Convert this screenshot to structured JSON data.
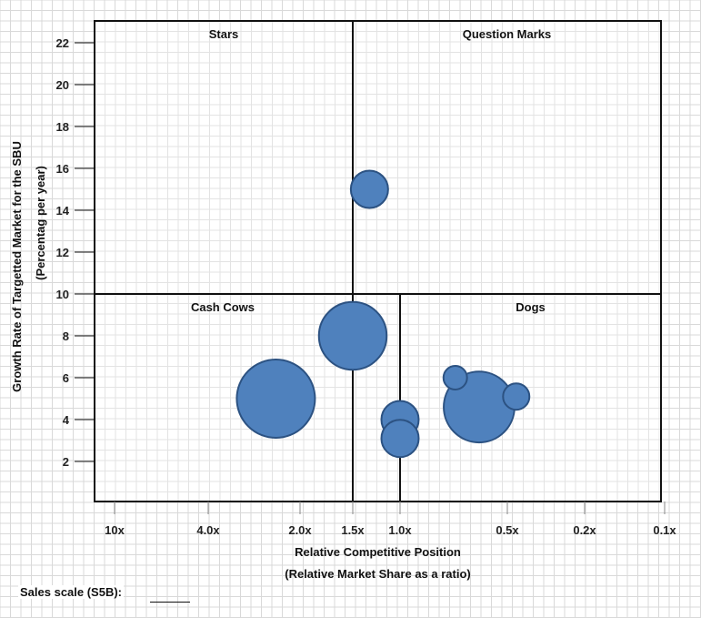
{
  "chart_data": {
    "type": "bubble",
    "title": "",
    "xlabel": "Relative Competitive Position",
    "xlabel2": "(Relative Market Share as a ratio)",
    "ylabel": "Growth Rate of Targetted Market for the SBU",
    "ylabel2": "(Percentag per year)",
    "x_scale": "log, reversed",
    "x_ticks": [
      {
        "value": 10,
        "label": "10x"
      },
      {
        "value": 4,
        "label": "4.0x"
      },
      {
        "value": 2,
        "label": "2.0x"
      },
      {
        "value": 1.5,
        "label": "1.5x"
      },
      {
        "value": 1,
        "label": "1.0x"
      },
      {
        "value": 0.5,
        "label": "0.5x"
      },
      {
        "value": 0.2,
        "label": "0.2x"
      },
      {
        "value": 0.1,
        "label": "0.1x"
      }
    ],
    "y_ticks": [
      2,
      4,
      6,
      8,
      10,
      12,
      14,
      16,
      18,
      20,
      22
    ],
    "ylim": [
      0,
      23
    ],
    "grid": true,
    "divider_y": 10,
    "divider_x_top": 1.5,
    "divider_x_bottom": 1.0,
    "quadrants": {
      "top_left": "Stars",
      "top_right": "Question Marks",
      "bottom_left": "Cash Cows",
      "bottom_right": "Dogs"
    },
    "bubble_color": "#4f81bd",
    "bubble_edge_color": "#2c5282",
    "series": [
      {
        "points": [
          {
            "x": 1.3,
            "y": 15,
            "size": 1.0
          },
          {
            "x": 1.5,
            "y": 8,
            "size": 3.3
          },
          {
            "x": 2.4,
            "y": 5,
            "size": 4.4
          },
          {
            "x": 1.0,
            "y": 4,
            "size": 1.0
          },
          {
            "x": 1.0,
            "y": 3.1,
            "size": 1.0
          },
          {
            "x": 0.7,
            "y": 6,
            "size": 0.4
          },
          {
            "x": 0.6,
            "y": 4.6,
            "size": 3.6
          },
          {
            "x": 0.45,
            "y": 5.1,
            "size": 0.5
          }
        ]
      }
    ]
  },
  "footer": {
    "sales_scale_label": "Sales scale (S5B):"
  }
}
